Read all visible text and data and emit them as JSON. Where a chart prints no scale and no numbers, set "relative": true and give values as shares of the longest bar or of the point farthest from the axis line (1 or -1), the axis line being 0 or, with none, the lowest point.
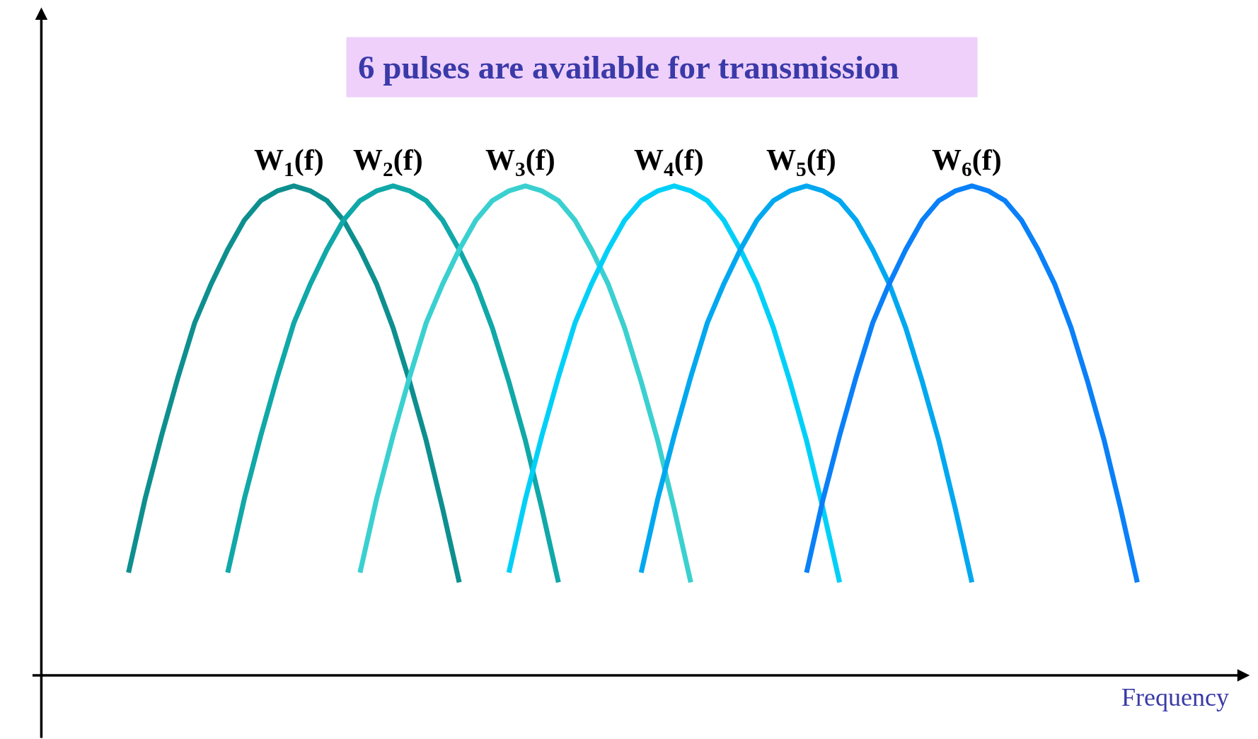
{
  "chart_data": {
    "type": "line",
    "relative": true,
    "title": "6 pulses are available for transmission",
    "xlabel": "Frequency",
    "legend": false,
    "grid": false,
    "marker": "none",
    "line_style": "solid",
    "categories": [
      null,
      null,
      null,
      null,
      null,
      null,
      null,
      null,
      null,
      null,
      null,
      null,
      null,
      null,
      null,
      null,
      null,
      null,
      null,
      null,
      null,
      null,
      null,
      null,
      null,
      null,
      null,
      null,
      null,
      null,
      null,
      null,
      null,
      null,
      null,
      null,
      null,
      null,
      null,
      null,
      null,
      null,
      null,
      null,
      null,
      null,
      null,
      null,
      null,
      null,
      null,
      null,
      null,
      null,
      null,
      null,
      null,
      null,
      null,
      null,
      null,
      null
    ],
    "series": [
      {
        "name": "W$_{1}$(f)",
        "color": "#0e8f8f",
        "values": [
          0.21,
          0.36,
          0.49,
          0.61,
          0.72,
          0.8,
          0.87,
          0.93,
          0.97,
          0.99,
          1,
          0.99,
          0.97,
          0.93,
          0.87,
          0.8,
          0.71,
          0.6,
          0.48,
          0.34,
          0.19,
          null,
          null,
          null,
          null,
          null,
          null,
          null,
          null,
          null,
          null,
          null,
          null,
          null,
          null,
          null,
          null,
          null,
          null,
          null,
          null,
          null,
          null,
          null,
          null,
          null,
          null,
          null,
          null,
          null,
          null,
          null,
          null,
          null,
          null,
          null,
          null,
          null,
          null,
          null,
          null,
          null
        ]
      },
      {
        "name": "W$_{2}$(f)",
        "color": "#10a8a8",
        "values": [
          null,
          null,
          null,
          null,
          null,
          null,
          0.21,
          0.36,
          0.49,
          0.61,
          0.72,
          0.8,
          0.87,
          0.93,
          0.97,
          0.99,
          1,
          0.99,
          0.97,
          0.93,
          0.87,
          0.8,
          0.71,
          0.6,
          0.48,
          0.34,
          0.19,
          null,
          null,
          null,
          null,
          null,
          null,
          null,
          null,
          null,
          null,
          null,
          null,
          null,
          null,
          null,
          null,
          null,
          null,
          null,
          null,
          null,
          null,
          null,
          null,
          null,
          null,
          null,
          null,
          null,
          null,
          null,
          null,
          null,
          null,
          null
        ]
      },
      {
        "name": "W$_{3}$(f)",
        "color": "#3ad0d0",
        "values": [
          null,
          null,
          null,
          null,
          null,
          null,
          null,
          null,
          null,
          null,
          null,
          null,
          null,
          null,
          0.21,
          0.36,
          0.49,
          0.61,
          0.72,
          0.8,
          0.87,
          0.93,
          0.97,
          0.99,
          1,
          0.99,
          0.97,
          0.93,
          0.87,
          0.8,
          0.71,
          0.6,
          0.48,
          0.34,
          0.19,
          null,
          null,
          null,
          null,
          null,
          null,
          null,
          null,
          null,
          null,
          null,
          null,
          null,
          null,
          null,
          null,
          null,
          null,
          null,
          null,
          null,
          null,
          null,
          null,
          null,
          null,
          null
        ]
      },
      {
        "name": "W$_{4}$(f)",
        "color": "#00d0f8",
        "values": [
          null,
          null,
          null,
          null,
          null,
          null,
          null,
          null,
          null,
          null,
          null,
          null,
          null,
          null,
          null,
          null,
          null,
          null,
          null,
          null,
          null,
          null,
          null,
          0.21,
          0.36,
          0.49,
          0.61,
          0.72,
          0.8,
          0.87,
          0.93,
          0.97,
          0.99,
          1,
          0.99,
          0.97,
          0.93,
          0.87,
          0.8,
          0.71,
          0.6,
          0.48,
          0.34,
          0.19,
          null,
          null,
          null,
          null,
          null,
          null,
          null,
          null,
          null,
          null,
          null,
          null,
          null,
          null,
          null,
          null,
          null,
          null
        ]
      },
      {
        "name": "W$_{5}$(f)",
        "color": "#00a8f0",
        "values": [
          null,
          null,
          null,
          null,
          null,
          null,
          null,
          null,
          null,
          null,
          null,
          null,
          null,
          null,
          null,
          null,
          null,
          null,
          null,
          null,
          null,
          null,
          null,
          null,
          null,
          null,
          null,
          null,
          null,
          null,
          null,
          0.21,
          0.36,
          0.49,
          0.61,
          0.72,
          0.8,
          0.87,
          0.93,
          0.97,
          0.99,
          1,
          0.99,
          0.97,
          0.93,
          0.87,
          0.8,
          0.71,
          0.6,
          0.48,
          0.34,
          0.19,
          null,
          null,
          null,
          null,
          null,
          null,
          null,
          null,
          null,
          null
        ]
      },
      {
        "name": "W$_{6}$(f)",
        "color": "#0a80f8",
        "values": [
          null,
          null,
          null,
          null,
          null,
          null,
          null,
          null,
          null,
          null,
          null,
          null,
          null,
          null,
          null,
          null,
          null,
          null,
          null,
          null,
          null,
          null,
          null,
          null,
          null,
          null,
          null,
          null,
          null,
          null,
          null,
          null,
          null,
          null,
          null,
          null,
          null,
          null,
          null,
          null,
          null,
          0.21,
          0.36,
          0.49,
          0.61,
          0.72,
          0.8,
          0.87,
          0.93,
          0.97,
          0.99,
          1,
          0.99,
          0.97,
          0.93,
          0.87,
          0.8,
          0.71,
          0.6,
          0.48,
          0.34,
          0.19
        ]
      }
    ]
  }
}
